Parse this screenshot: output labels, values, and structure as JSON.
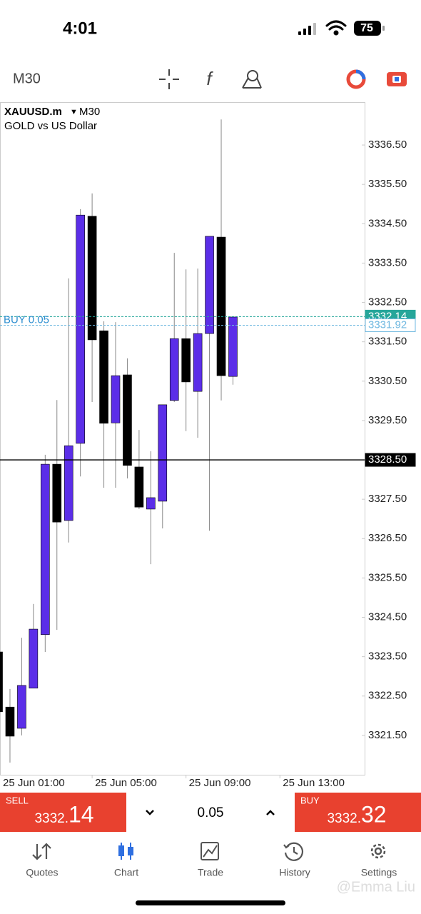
{
  "status_bar": {
    "time": "4:01",
    "battery": "75"
  },
  "toolbar": {
    "timeframe": "M30"
  },
  "chart_data": {
    "type": "candlestick",
    "symbol": "XAUUSD.m",
    "timeframe": "M30",
    "subtitle": "GOLD vs US Dollar",
    "bull_color": "#5b2ee8",
    "bear_color": "#000000",
    "x": [
      0,
      1,
      2,
      3,
      4,
      5,
      6,
      7,
      8,
      9,
      10,
      11,
      12,
      13,
      14,
      15,
      16,
      17,
      18,
      19,
      20
    ],
    "open": [
      3323.62,
      3322.22,
      3321.68,
      3322.7,
      3324.06,
      3328.39,
      3326.96,
      3328.92,
      3334.69,
      3331.78,
      3329.44,
      3330.66,
      3328.32,
      3327.25,
      3327.45,
      3330.01,
      3331.58,
      3330.24,
      3331.71,
      3334.16,
      3330.62
    ],
    "high": [
      3323.62,
      3322.68,
      3323.98,
      3324.84,
      3328.63,
      3330.02,
      3333.11,
      3334.87,
      3335.27,
      3332.02,
      3332.0,
      3331.08,
      3329.26,
      3328.72,
      3329.9,
      3333.76,
      3333.34,
      3333.36,
      3334.18,
      3337.15,
      3332.13
    ],
    "low": [
      3322.1,
      3320.81,
      3321.5,
      3322.7,
      3323.62,
      3324.18,
      3326.4,
      3328.08,
      3329.97,
      3327.79,
      3327.79,
      3328.03,
      3327.25,
      3325.85,
      3326.76,
      3329.97,
      3329.23,
      3329.06,
      3326.7,
      3330.01,
      3330.41
    ],
    "close": [
      3322.1,
      3321.48,
      3322.77,
      3324.2,
      3328.39,
      3326.92,
      3328.86,
      3334.72,
      3331.55,
      3329.43,
      3330.64,
      3328.36,
      3327.3,
      3327.54,
      3329.9,
      3331.58,
      3330.48,
      3331.71,
      3334.18,
      3330.64,
      3332.13
    ],
    "xlim": [
      0.15,
      31.22
    ],
    "xticks": [
      {
        "value": 0,
        "label": "25 Jun 01:00"
      },
      {
        "value": 8,
        "label": "25 Jun 05:00"
      },
      {
        "value": 16,
        "label": "25 Jun 09:00"
      },
      {
        "value": 24,
        "label": "25 Jun 13:00"
      }
    ],
    "ylim": [
      3320.5,
      3337.59
    ],
    "yticks": [
      {
        "value": 3321.5,
        "label": "3321.50"
      },
      {
        "value": 3322.5,
        "label": "3322.50"
      },
      {
        "value": 3323.5,
        "label": "3323.50"
      },
      {
        "value": 3324.5,
        "label": "3324.50"
      },
      {
        "value": 3325.5,
        "label": "3325.50"
      },
      {
        "value": 3326.5,
        "label": "3326.50"
      },
      {
        "value": 3327.5,
        "label": "3327.50"
      },
      {
        "value": 3329.5,
        "label": "3329.50"
      },
      {
        "value": 3330.5,
        "label": "3330.50"
      },
      {
        "value": 3331.5,
        "label": "3331.50"
      },
      {
        "value": 3332.5,
        "label": "3332.50"
      },
      {
        "value": 3333.5,
        "label": "3333.50"
      },
      {
        "value": 3334.5,
        "label": "3334.50"
      },
      {
        "value": 3335.5,
        "label": "3335.50"
      },
      {
        "value": 3336.5,
        "label": "3336.50"
      }
    ],
    "price_lines": [
      {
        "value": 3332.14,
        "label": "3332.14",
        "color": "#26a69a",
        "style": "dashed"
      },
      {
        "value": 3331.92,
        "label": "3331.92",
        "color": "#6fb8e0",
        "style": "dashed",
        "order": "BUY 0.05"
      },
      {
        "value": 3328.5,
        "label": "3328.50",
        "color": "#000000",
        "style": "solid"
      }
    ]
  },
  "trade_bar": {
    "sell_label": "SELL",
    "sell_main": "3332.",
    "sell_pips": "14",
    "volume": "0.05",
    "buy_label": "BUY",
    "buy_main": "3332.",
    "buy_pips": "32"
  },
  "tabs": [
    "Quotes",
    "Chart",
    "Trade",
    "History",
    "Settings"
  ],
  "watermark": "@Emma Liu"
}
